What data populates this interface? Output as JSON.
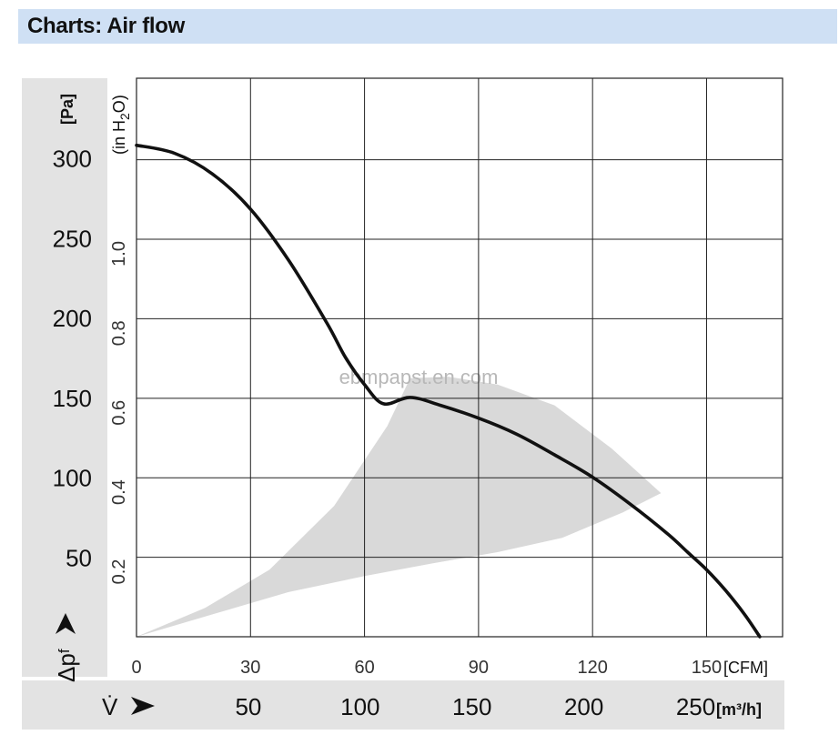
{
  "header": {
    "title": "Charts: Air flow"
  },
  "chart_data": {
    "type": "line",
    "title": "Charts: Air flow",
    "x_unit_cfm": "[CFM]",
    "x_unit_m3h": "[m³/h]",
    "x_symbol": "V̇",
    "y_unit_pa": "[Pa]",
    "y_unit_inh2o_prefix": "(in H",
    "y_unit_inh2o_sub": "2",
    "y_unit_inh2o_suffix": "O)",
    "y_symbol_main": "Δp",
    "y_symbol_sub": "f",
    "xlim_cfm": [
      0,
      170
    ],
    "ylim_pa": [
      0,
      350
    ],
    "x_ticks_cfm": [
      "0",
      "30",
      "60",
      "90",
      "120",
      "150"
    ],
    "x_ticks_m3h": [
      "50",
      "100",
      "150",
      "200",
      "250"
    ],
    "y_ticks_pa": [
      "50",
      "100",
      "150",
      "200",
      "250",
      "300"
    ],
    "y_ticks_inh2o": [
      "0.2",
      "0.4",
      "0.6",
      "0.8",
      "1.0"
    ],
    "grid": true,
    "watermark": "EBMPAPST.EN.COM",
    "series": [
      {
        "x_cfm": [
          0,
          10,
          20,
          30,
          40,
          50,
          55,
          60,
          65,
          72,
          80,
          90,
          100,
          110,
          120,
          130,
          140,
          145,
          150,
          155,
          160,
          164
        ],
        "y_pa": [
          308,
          303,
          290,
          268,
          236,
          197,
          175,
          158,
          146,
          150,
          145,
          137,
          127,
          114,
          100,
          83,
          64,
          53,
          42,
          29,
          14,
          0
        ]
      }
    ],
    "operating_region": {
      "outer_x_cfm": [
        0,
        18,
        35,
        52,
        66,
        72,
        82,
        95,
        110,
        125,
        138
      ],
      "outer_y_pa": [
        0,
        18,
        42,
        82,
        132,
        162,
        163,
        158,
        145,
        118,
        90
      ],
      "inner_x_cfm": [
        138,
        128,
        112,
        95,
        78,
        60,
        40,
        20,
        0
      ],
      "inner_y_pa": [
        90,
        78,
        62,
        53,
        46,
        38,
        28,
        14,
        0
      ]
    }
  }
}
